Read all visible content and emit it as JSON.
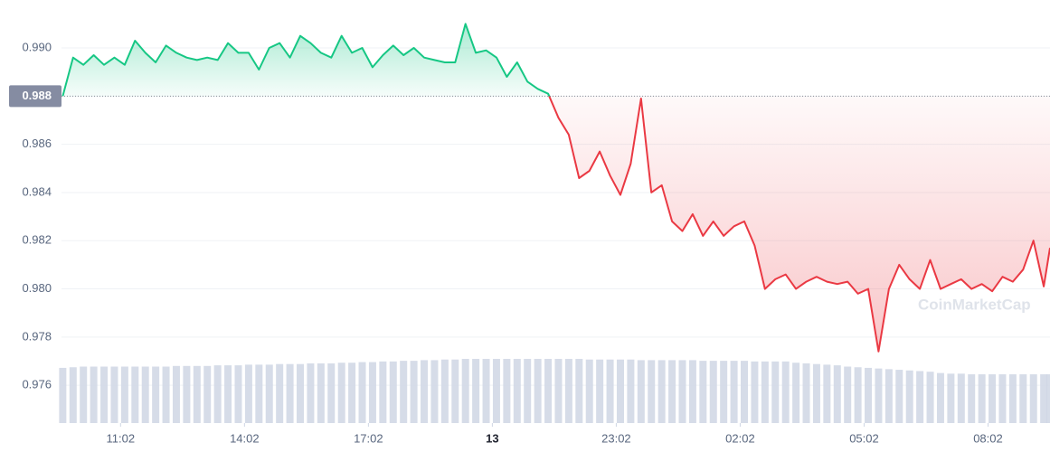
{
  "chart_data": {
    "type": "line",
    "watermark": "CoinMarketCap",
    "baseline": 0.988,
    "up_color": "#16c784",
    "down_color": "#ea3943",
    "volume_color": "#cfd6e4",
    "grid": true,
    "ylim": [
      0.97443,
      0.99199
    ],
    "yticks": [
      {
        "value": 0.99,
        "label": "0.990"
      },
      0.988,
      0.986,
      0.984,
      0.982,
      {
        "value": 0.98,
        "label": "0.980"
      },
      0.978,
      0.976
    ],
    "xlim": [
      -1.43,
      22.5
    ],
    "xticks": [
      {
        "value": 0,
        "label": "11:02"
      },
      {
        "value": 3,
        "label": "14:02"
      },
      {
        "value": 6,
        "label": "17:02"
      },
      {
        "value": 9,
        "label": "13"
      },
      {
        "value": 12,
        "label": "23:02"
      },
      {
        "value": 15,
        "label": "02:02"
      },
      {
        "value": 18,
        "label": "05:02"
      },
      {
        "value": 21,
        "label": "08:02"
      }
    ],
    "y2lim": [
      0,
      100
    ],
    "x": [
      -1.4,
      -1.15,
      -0.9,
      -0.65,
      -0.4,
      -0.15,
      0.1,
      0.35,
      0.6,
      0.85,
      1.1,
      1.35,
      1.6,
      1.85,
      2.1,
      2.35,
      2.6,
      2.85,
      3.1,
      3.35,
      3.6,
      3.85,
      4.1,
      4.35,
      4.6,
      4.85,
      5.1,
      5.35,
      5.6,
      5.85,
      6.1,
      6.35,
      6.6,
      6.85,
      7.1,
      7.35,
      7.6,
      7.85,
      8.1,
      8.35,
      8.6,
      8.85,
      9.1,
      9.35,
      9.6,
      9.85,
      10.1,
      10.35,
      10.6,
      10.85,
      11.1,
      11.35,
      11.6,
      11.85,
      12.1,
      12.35,
      12.6,
      12.85,
      13.1,
      13.35,
      13.6,
      13.85,
      14.1,
      14.35,
      14.6,
      14.85,
      15.1,
      15.35,
      15.6,
      15.85,
      16.1,
      16.35,
      16.6,
      16.85,
      17.1,
      17.35,
      17.6,
      17.85,
      18.1,
      18.35,
      18.6,
      18.85,
      19.1,
      19.35,
      19.6,
      19.85,
      20.1,
      20.35,
      20.6,
      20.85,
      21.1,
      21.35,
      21.6,
      21.85,
      22.1,
      22.35,
      22.5
    ],
    "series": [
      {
        "name": "Price",
        "values": [
          0.988,
          0.9896,
          0.9893,
          0.9897,
          0.9893,
          0.9896,
          0.9893,
          0.9903,
          0.9898,
          0.9894,
          0.9901,
          0.9898,
          0.9896,
          0.9895,
          0.9896,
          0.9895,
          0.9902,
          0.9898,
          0.9898,
          0.9891,
          0.99,
          0.9902,
          0.9896,
          0.9905,
          0.9902,
          0.9898,
          0.9896,
          0.9905,
          0.9898,
          0.99,
          0.9892,
          0.9897,
          0.9901,
          0.9897,
          0.99,
          0.9896,
          0.9895,
          0.9894,
          0.9894,
          0.991,
          0.9898,
          0.9899,
          0.9896,
          0.9888,
          0.9894,
          0.9886,
          0.9883,
          0.9881,
          0.9871,
          0.9864,
          0.9846,
          0.9849,
          0.9857,
          0.9847,
          0.9839,
          0.9852,
          0.9879,
          0.984,
          0.9843,
          0.9828,
          0.9824,
          0.9831,
          0.9822,
          0.9828,
          0.9822,
          0.9826,
          0.9828,
          0.9818,
          0.98,
          0.9804,
          0.9806,
          0.98,
          0.9803,
          0.9805,
          0.9803,
          0.9802,
          0.9803,
          0.9798,
          0.98,
          0.9774,
          0.98,
          0.981,
          0.9804,
          0.98,
          0.9812,
          0.98,
          0.9802,
          0.9804,
          0.98,
          0.9802,
          0.9799,
          0.9805,
          0.9803,
          0.9808,
          0.982,
          0.9801,
          0.9817
        ]
      },
      {
        "name": "Volume",
        "axis": "y2",
        "values": [
          86,
          87,
          88,
          88,
          88,
          88,
          88,
          88,
          88,
          88,
          88,
          89,
          89,
          89,
          89,
          90,
          90,
          90,
          91,
          91,
          91,
          92,
          92,
          92,
          93,
          93,
          93,
          94,
          94,
          95,
          95,
          96,
          96,
          97,
          97,
          98,
          98,
          99,
          99,
          100,
          100,
          100,
          100,
          100,
          100,
          100,
          100,
          100,
          100,
          100,
          100,
          99,
          99,
          99,
          99,
          99,
          98,
          98,
          98,
          98,
          98,
          98,
          97,
          97,
          97,
          97,
          97,
          96,
          96,
          96,
          96,
          94,
          93,
          92,
          91,
          90,
          88,
          87,
          86,
          85,
          84,
          83,
          82,
          81,
          80,
          78,
          77,
          77,
          76,
          76,
          76,
          76,
          76,
          76,
          76,
          76,
          76
        ]
      }
    ]
  }
}
